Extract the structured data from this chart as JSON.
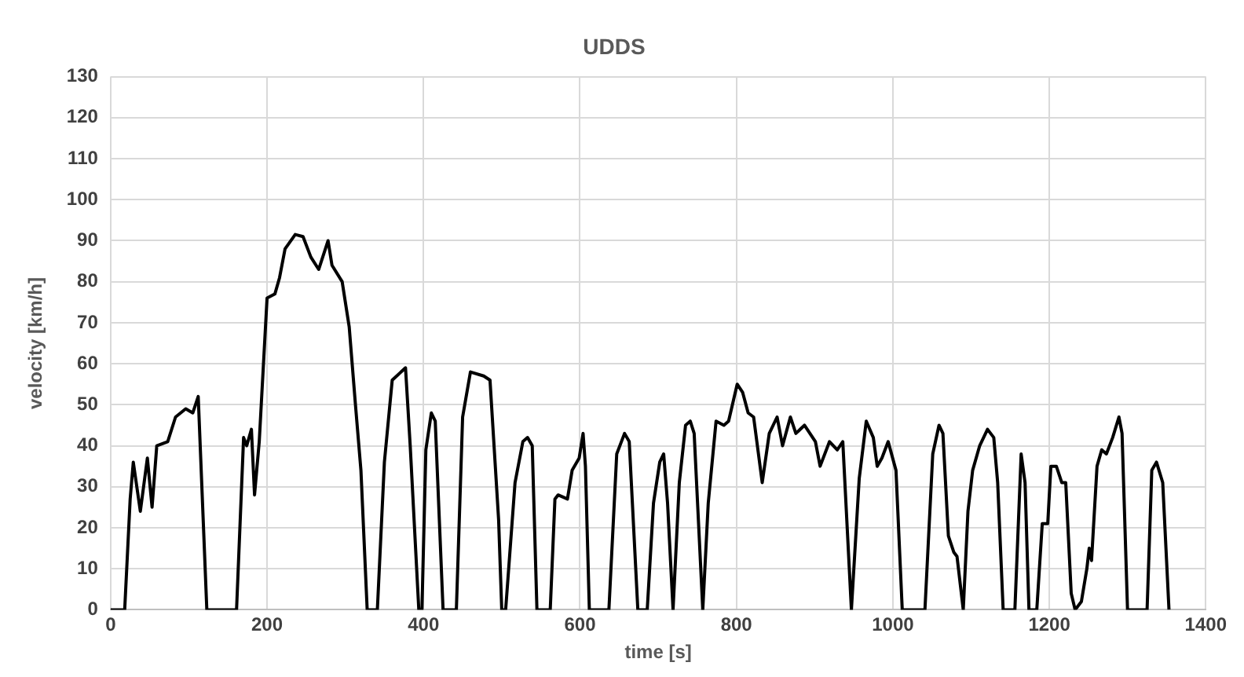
{
  "chart_data": {
    "type": "line",
    "title": "UDDS",
    "xlabel": "time [s]",
    "ylabel": "velocity [km/h]",
    "x": [
      0,
      18,
      25,
      29,
      38,
      47,
      53,
      59,
      73,
      83,
      96,
      105,
      112,
      123,
      161,
      170,
      174,
      180,
      184,
      190,
      200,
      210,
      216,
      223,
      236,
      246,
      256,
      266,
      278,
      283,
      296,
      305,
      313,
      320,
      328,
      341,
      350,
      360,
      377,
      383,
      394,
      398,
      403,
      410,
      415,
      425,
      442,
      450,
      460,
      477,
      485,
      496,
      500,
      505,
      517,
      527,
      533,
      539,
      545,
      562,
      568,
      572,
      584,
      590,
      599,
      604,
      607,
      612,
      637,
      647,
      657,
      663,
      674,
      686,
      694,
      702,
      707,
      712,
      719,
      727,
      735,
      741,
      746,
      757,
      764,
      774,
      784,
      790,
      801,
      808,
      815,
      822,
      833,
      842,
      852,
      859,
      869,
      876,
      887,
      901,
      907,
      919,
      929,
      936,
      947,
      957,
      966,
      975,
      980,
      986,
      994,
      1004,
      1012,
      1041,
      1051,
      1059,
      1064,
      1071,
      1078,
      1082,
      1090,
      1096,
      1102,
      1111,
      1121,
      1129,
      1134,
      1141,
      1156,
      1164,
      1169,
      1174,
      1184,
      1191,
      1198,
      1202,
      1209,
      1216,
      1221,
      1228,
      1233,
      1241,
      1248,
      1251,
      1254,
      1261,
      1267,
      1273,
      1281,
      1289,
      1293,
      1300,
      1325,
      1331,
      1337,
      1345,
      1353
    ],
    "series": [
      {
        "color": "#000000",
        "values": [
          0,
          0,
          27,
          36,
          24,
          37,
          25,
          40,
          41,
          47,
          49,
          48,
          52,
          0,
          0,
          42,
          40,
          44,
          28,
          41,
          76,
          77,
          81,
          88,
          91.5,
          91,
          86,
          83,
          90,
          84,
          80,
          69,
          50,
          34,
          0,
          0,
          36,
          56,
          59,
          40,
          0,
          0,
          39,
          48,
          46,
          0,
          0,
          47,
          58,
          57,
          56,
          22,
          0,
          0,
          31,
          41,
          42,
          40,
          0,
          0,
          27,
          28,
          27,
          34,
          37,
          43,
          35,
          0,
          0,
          38,
          43,
          41,
          0,
          0,
          26,
          36,
          38,
          26,
          0,
          31,
          45,
          46,
          43,
          0,
          26,
          46,
          45,
          46,
          55,
          53,
          48,
          47,
          31,
          43,
          47,
          40,
          47,
          43,
          45,
          41,
          35,
          41,
          39,
          41,
          0,
          32,
          46,
          42,
          35,
          37,
          41,
          34,
          0,
          0,
          38,
          45,
          43,
          18,
          14,
          13,
          0,
          24,
          34,
          40,
          44,
          42,
          31,
          0,
          0,
          38,
          31,
          0,
          0,
          21,
          21,
          35,
          35,
          31,
          31,
          4,
          0,
          2,
          10,
          15,
          12,
          35,
          39,
          38,
          42,
          47,
          43,
          0,
          0,
          34,
          36,
          31,
          0
        ]
      }
    ],
    "xlim": [
      0,
      1400
    ],
    "xticks": [
      0,
      200,
      400,
      600,
      800,
      1000,
      1200,
      1400
    ],
    "ylim": [
      0,
      130
    ],
    "yticks": [
      0,
      10,
      20,
      30,
      40,
      50,
      60,
      70,
      80,
      90,
      100,
      110,
      120,
      130
    ],
    "grid": true,
    "legend": false,
    "marker": "none",
    "line_style": "solid"
  }
}
